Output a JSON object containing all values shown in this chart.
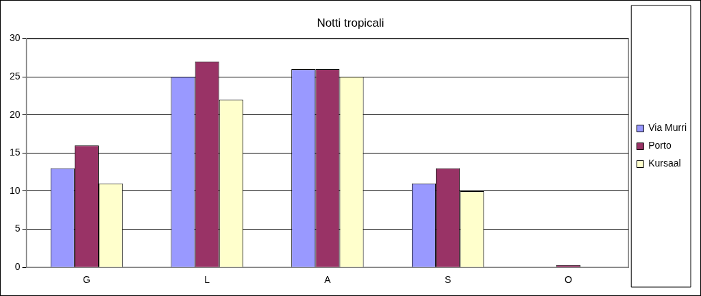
{
  "chart_data": {
    "type": "bar",
    "title": "Notti tropicali",
    "categories": [
      "G",
      "L",
      "A",
      "S",
      "O"
    ],
    "series": [
      {
        "name": "Via Murri",
        "color": "#9999ff",
        "values": [
          13,
          25,
          26,
          11,
          0
        ]
      },
      {
        "name": "Porto",
        "color": "#993366",
        "values": [
          16,
          27,
          26,
          13,
          0.3
        ]
      },
      {
        "name": "Kursaal",
        "color": "#ffffcc",
        "values": [
          11,
          22,
          25,
          10,
          0
        ]
      }
    ],
    "ylim": [
      0,
      30
    ],
    "yticks": [
      0,
      5,
      10,
      15,
      20,
      25,
      30
    ],
    "grid": "y",
    "legend": "right"
  }
}
